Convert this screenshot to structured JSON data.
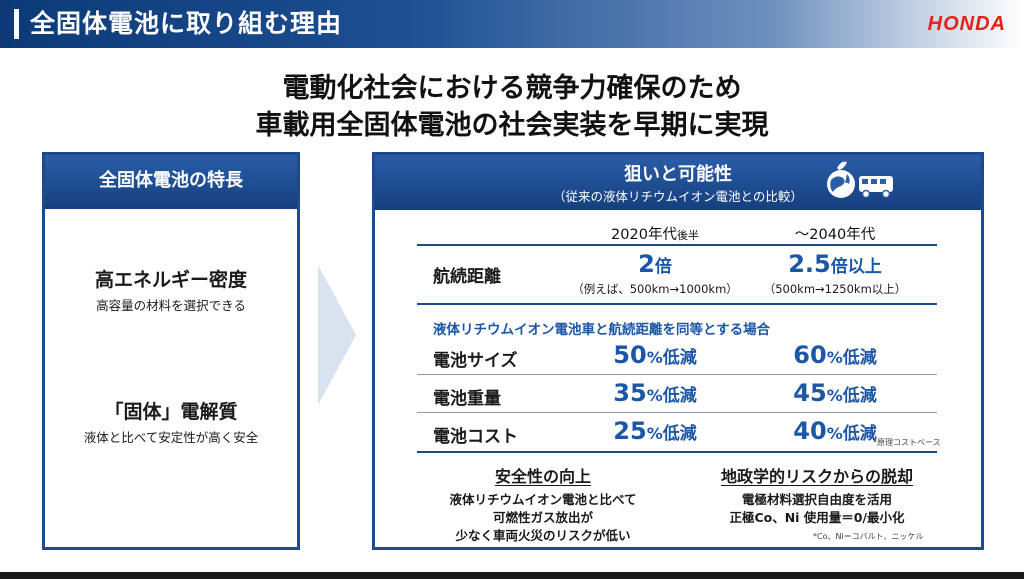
{
  "header": {
    "title": "全固体電池に取り組む理由",
    "logo": "HONDA"
  },
  "headline": {
    "line1": "電動化社会における競争力確保のため",
    "line2": "車載用全固体電池の社会実装を早期に実現"
  },
  "left": {
    "heading": "全固体電池の特長",
    "features": [
      {
        "title": "高エネルギー密度",
        "sub": "高容量の材料を選択できる"
      },
      {
        "title": "「固体」電解質",
        "sub": "液体と比べて安定性が高く安全"
      }
    ]
  },
  "right": {
    "heading": "狙いと可能性",
    "subheading": "（従来の液体リチウムイオン電池との比較）",
    "columns": [
      {
        "main": "2020年代",
        "suffix": "後半"
      },
      {
        "main": "～2040年代",
        "suffix": ""
      }
    ],
    "range": {
      "label": "航続距離",
      "values": [
        {
          "num": "2",
          "unit": "倍",
          "note": "（例えば、500km→1000km）"
        },
        {
          "num": "2.5",
          "unit": "倍以上",
          "note": "（500km→1250km以上）"
        }
      ]
    },
    "condition": "液体リチウムイオン電池車と航続距離を同等とする場合",
    "rows": [
      {
        "label": "電池サイズ",
        "values": [
          {
            "num": "50",
            "pct": "%",
            "unit": "低減"
          },
          {
            "num": "60",
            "pct": "%",
            "unit": "低減"
          }
        ]
      },
      {
        "label": "電池重量",
        "values": [
          {
            "num": "35",
            "pct": "%",
            "unit": "低減"
          },
          {
            "num": "45",
            "pct": "%",
            "unit": "低減"
          }
        ]
      },
      {
        "label": "電池コスト",
        "values": [
          {
            "num": "25",
            "pct": "%",
            "unit": "低減"
          },
          {
            "num": "40",
            "pct": "%",
            "unit": "低減"
          }
        ]
      }
    ],
    "cost_note": "*原理コストベース",
    "safety": {
      "title": "安全性の向上",
      "lines": [
        "液体リチウムイオン電池と比べて",
        "可燃性ガス放出が",
        "少なく車両火災のリスクが低い"
      ]
    },
    "geo": {
      "title": "地政学的リスクからの脱却",
      "lines": [
        "電極材料選択自由度を活用",
        "正極Co、Ni 使用量＝0/最小化"
      ]
    },
    "footnote": "*Co、Ni＝コバルト、ニッケル"
  }
}
